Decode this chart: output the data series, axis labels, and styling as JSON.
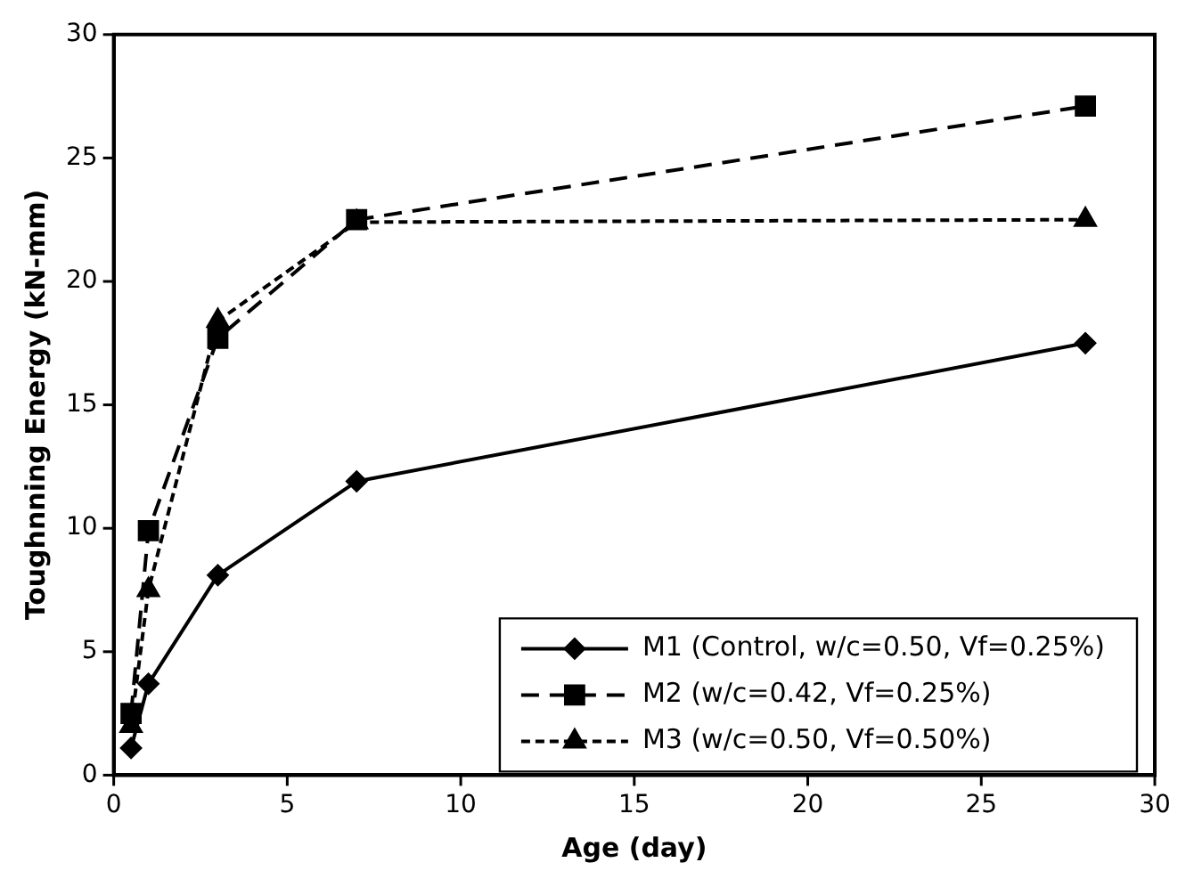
{
  "chart_data": {
    "type": "line",
    "xlabel": "Age (day)",
    "ylabel": "Toughnning Energy (kN-mm)",
    "x": [
      0.5,
      1,
      3,
      7,
      28
    ],
    "series": [
      {
        "name": "M1 (Control, w/c=0.50, Vf=0.25%)",
        "color": "#000000",
        "values": [
          1.1,
          3.7,
          8.1,
          11.9,
          17.5
        ],
        "marker": "diamond",
        "line_style": "solid"
      },
      {
        "name": "M2 (w/c=0.42, Vf=0.25%)",
        "color": "#000000",
        "values": [
          2.5,
          9.9,
          17.7,
          22.5,
          27.1
        ],
        "marker": "square",
        "line_style": "dashed"
      },
      {
        "name": "M3 (w/c=0.50, Vf=0.50%)",
        "color": "#000000",
        "values": [
          2.0,
          7.5,
          18.4,
          22.4,
          22.5
        ],
        "marker": "triangle",
        "line_style": "dotted"
      }
    ],
    "xlim": [
      0,
      30
    ],
    "xticks": [
      0,
      5,
      10,
      15,
      20,
      25,
      30
    ],
    "ylim": [
      0,
      30
    ],
    "yticks": [
      0,
      5,
      10,
      15,
      20,
      25,
      30
    ],
    "grid": false,
    "legend": "bottom right"
  }
}
